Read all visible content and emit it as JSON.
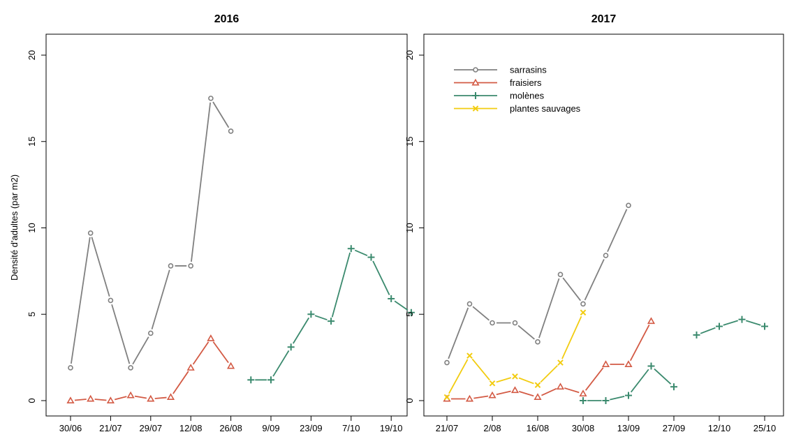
{
  "ylabel": "Densité d'adultes (par m2)",
  "colors": {
    "sarrasins": "#808080",
    "fraisiers": "#d35a44",
    "molenes": "#3b8a6e",
    "plantes_sauvages": "#f2cc10"
  },
  "legend": {
    "placement": "top-left of right panel",
    "entries": [
      {
        "key": "sarrasins",
        "label": "sarrasins",
        "marker": "circle"
      },
      {
        "key": "fraisiers",
        "label": "fraisiers",
        "marker": "triangle"
      },
      {
        "key": "molenes",
        "label": "molènes",
        "marker": "plus"
      },
      {
        "key": "plantes_sauvages",
        "label": "plantes sauvages",
        "marker": "cross"
      }
    ]
  },
  "chart_data": [
    {
      "type": "line",
      "title": "2016",
      "xlabel": "",
      "ylabel": "Densité d'adultes (par m2)",
      "ylim": [
        0,
        20
      ],
      "yticks": [
        0,
        5,
        10,
        15,
        20
      ],
      "x_tick_labels": [
        "30/06",
        "21/07",
        "29/07",
        "12/08",
        "26/08",
        "9/09",
        "23/09",
        "7/10",
        "19/10"
      ],
      "grid": false,
      "series": [
        {
          "name": "sarrasins",
          "key": "sarrasins",
          "marker": "circle",
          "segments": [
            [
              [
                0,
                1.9
              ],
              [
                1,
                9.7
              ],
              [
                2,
                5.8
              ],
              [
                3,
                1.9
              ],
              [
                4,
                3.9
              ],
              [
                5,
                7.8
              ],
              [
                6,
                7.8
              ],
              [
                7,
                17.5
              ],
              [
                8,
                15.6
              ]
            ]
          ]
        },
        {
          "name": "fraisiers",
          "key": "fraisiers",
          "marker": "triangle",
          "segments": [
            [
              [
                0,
                0.0
              ],
              [
                1,
                0.1
              ],
              [
                2,
                0.0
              ],
              [
                3,
                0.3
              ],
              [
                4,
                0.1
              ],
              [
                5,
                0.2
              ],
              [
                6,
                1.9
              ],
              [
                7,
                3.6
              ],
              [
                8,
                2.0
              ]
            ]
          ]
        },
        {
          "name": "molènes",
          "key": "molenes",
          "marker": "plus",
          "segments": [
            [
              [
                9,
                1.2
              ],
              [
                10,
                1.2
              ],
              [
                11,
                3.1
              ],
              [
                12,
                5.0
              ],
              [
                13,
                4.6
              ],
              [
                14,
                8.8
              ],
              [
                15,
                8.3
              ],
              [
                16,
                5.9
              ],
              [
                17,
                5.1
              ]
            ]
          ]
        }
      ]
    },
    {
      "type": "line",
      "title": "2017",
      "xlabel": "",
      "ylim": [
        0,
        20
      ],
      "yticks": [
        0,
        5,
        10,
        15,
        20
      ],
      "x_tick_labels": [
        "21/07",
        "2/08",
        "16/08",
        "30/08",
        "13/09",
        "27/09",
        "12/10",
        "25/10"
      ],
      "grid": false,
      "series": [
        {
          "name": "sarrasins",
          "key": "sarrasins",
          "marker": "circle",
          "segments": [
            [
              [
                0,
                2.2
              ],
              [
                1,
                5.6
              ],
              [
                2,
                4.5
              ],
              [
                3,
                4.5
              ],
              [
                4,
                3.4
              ],
              [
                5,
                7.3
              ],
              [
                6,
                5.6
              ],
              [
                7,
                8.4
              ],
              [
                8,
                11.3
              ]
            ]
          ]
        },
        {
          "name": "fraisiers",
          "key": "fraisiers",
          "marker": "triangle",
          "segments": [
            [
              [
                0,
                0.1
              ],
              [
                1,
                0.1
              ],
              [
                2,
                0.3
              ],
              [
                3,
                0.6
              ],
              [
                4,
                0.2
              ],
              [
                5,
                0.8
              ],
              [
                6,
                0.4
              ],
              [
                7,
                2.1
              ],
              [
                8,
                2.1
              ],
              [
                9,
                4.6
              ]
            ]
          ]
        },
        {
          "name": "molènes",
          "key": "molenes",
          "marker": "plus",
          "segments": [
            [
              [
                6,
                0.0
              ],
              [
                7,
                0.0
              ],
              [
                8,
                0.3
              ],
              [
                9,
                2.0
              ],
              [
                10,
                0.8
              ]
            ],
            [
              [
                11,
                3.8
              ],
              [
                12,
                4.3
              ],
              [
                13,
                4.7
              ],
              [
                14,
                4.3
              ]
            ]
          ]
        },
        {
          "name": "plantes sauvages",
          "key": "plantes_sauvages",
          "marker": "cross",
          "segments": [
            [
              [
                0,
                0.2
              ],
              [
                1,
                2.6
              ],
              [
                2,
                1.0
              ],
              [
                3,
                1.4
              ],
              [
                4,
                0.9
              ],
              [
                5,
                2.2
              ],
              [
                6,
                5.1
              ]
            ]
          ]
        }
      ]
    }
  ]
}
